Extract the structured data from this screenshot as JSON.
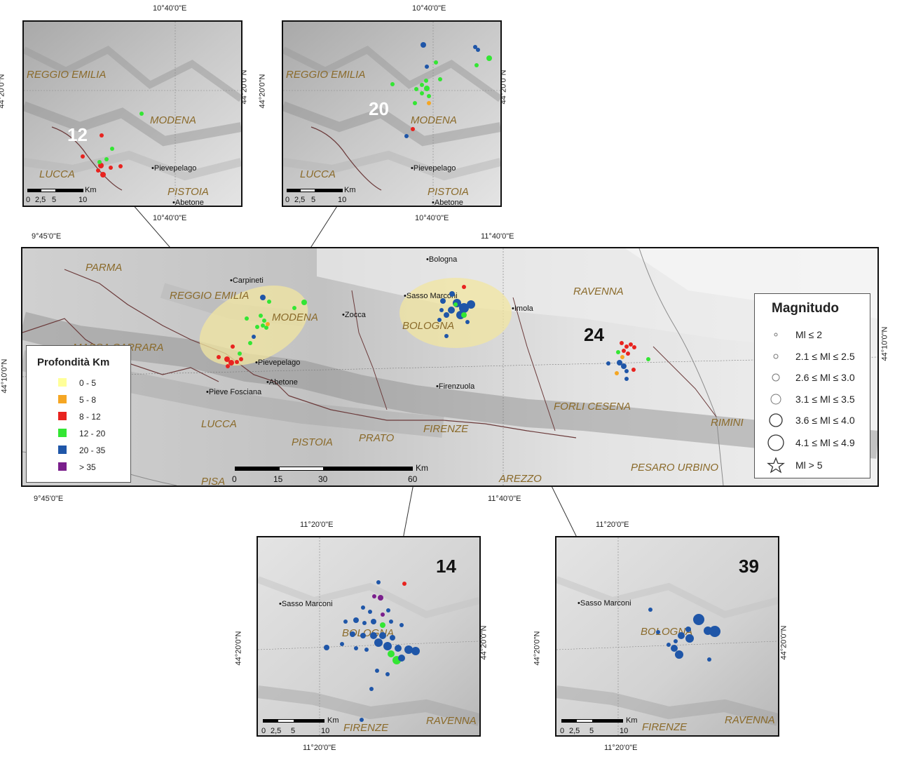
{
  "main_map": {
    "coord_top_left": "9°45'0\"E",
    "coord_top_right": "11°40'0\"E",
    "coord_bottom_left": "9°45'0\"E",
    "coord_bottom_right": "11°40'0\"E",
    "coord_left": "44°10'0\"N",
    "coord_right": "44°10'0\"N",
    "regions": [
      "PARMA",
      "REGGIO EMILIA",
      "MODENA",
      "MASSA CARRARA",
      "LUCCA",
      "PISTOIA",
      "PRATO",
      "FIRENZE",
      "BOLOGNA",
      "RAVENNA",
      "FORLI CESENA",
      "RIMINI",
      "PESARO URBINO",
      "PISA",
      "AREZZO"
    ],
    "towns": [
      "Carpineti",
      "Zocca",
      "Bologna",
      "Sasso Marconi",
      "Imola",
      "Pievepelago",
      "Abetone",
      "Pieve Fosciana",
      "Firenzuola"
    ],
    "cluster_label": "24",
    "scale": {
      "unit": "Km",
      "ticks": [
        "0",
        "15",
        "30",
        "60"
      ]
    }
  },
  "inset_12": {
    "label": "12",
    "coord_top": "10°40'0\"E",
    "coord_bottom": "10°40'0\"E",
    "coord_left": "44°20'0\"N",
    "coord_right": "44°20'0\"N",
    "regions": [
      "REGGIO EMILIA",
      "MODENA",
      "LUCCA",
      "PISTOIA"
    ],
    "towns": [
      "Pievepelago",
      "Abetone"
    ],
    "scale": {
      "unit": "Km",
      "ticks": [
        "0",
        "2,5",
        "5",
        "10"
      ]
    }
  },
  "inset_20": {
    "label": "20",
    "coord_top": "10°40'0\"E",
    "coord_bottom": "10°40'0\"E",
    "coord_left": "44°20'0\"N",
    "coord_right": "44°20'0\"N",
    "regions": [
      "REGGIO EMILIA",
      "MODENA",
      "LUCCA",
      "PISTOIA"
    ],
    "towns": [
      "Pievepelago",
      "Abetone"
    ],
    "scale": {
      "unit": "Km",
      "ticks": [
        "0",
        "2,5",
        "5",
        "10"
      ]
    }
  },
  "inset_14": {
    "label": "14",
    "coord_top": "11°20'0\"E",
    "coord_bottom": "11°20'0\"E",
    "coord_left": "44°20'0\"N",
    "coord_right": "44°20'0\"N",
    "regions": [
      "BOLOGNA",
      "FIRENZE",
      "RAVENNA"
    ],
    "towns": [
      "Sasso Marconi"
    ],
    "scale": {
      "unit": "Km",
      "ticks": [
        "0",
        "2,5",
        "5",
        "10"
      ]
    }
  },
  "inset_39": {
    "label": "39",
    "coord_top": "11°20'0\"E",
    "coord_bottom": "11°20'0\"E",
    "coord_left": "44°20'0\"N",
    "coord_right": "44°20'0\"N",
    "regions": [
      "BOLOGNA",
      "FIRENZE",
      "RAVENNA"
    ],
    "towns": [
      "Sasso Marconi"
    ],
    "scale": {
      "unit": "Km",
      "ticks": [
        "0",
        "2,5",
        "5",
        "10"
      ]
    }
  },
  "legend_depth": {
    "title": "Profondità Km",
    "items": [
      {
        "label": "0 - 5",
        "color": "#ffff99"
      },
      {
        "label": "5 - 8",
        "color": "#f5a623"
      },
      {
        "label": "8 - 12",
        "color": "#e8231f"
      },
      {
        "label": "12 - 20",
        "color": "#33e633"
      },
      {
        "label": "20 - 35",
        "color": "#1f56a8"
      },
      {
        "label": "> 35",
        "color": "#7a1f8c"
      }
    ]
  },
  "legend_magnitude": {
    "title": "Magnitudo",
    "items": [
      {
        "label": "Ml ≤ 2"
      },
      {
        "label": "2.1 ≤ Ml ≤ 2.5"
      },
      {
        "label": "2.6 ≤ Ml ≤ 3.0"
      },
      {
        "label": "3.1 ≤ Ml ≤ 3.5"
      },
      {
        "label": "3.6 ≤ Ml ≤ 4.0"
      },
      {
        "label": "4.1 ≤ Ml ≤ 4.9"
      },
      {
        "label": "Ml > 5"
      }
    ]
  },
  "colors": {
    "region_label": "#8a6a2a",
    "frame": "#111111",
    "highlight": "#f1e6a0"
  }
}
